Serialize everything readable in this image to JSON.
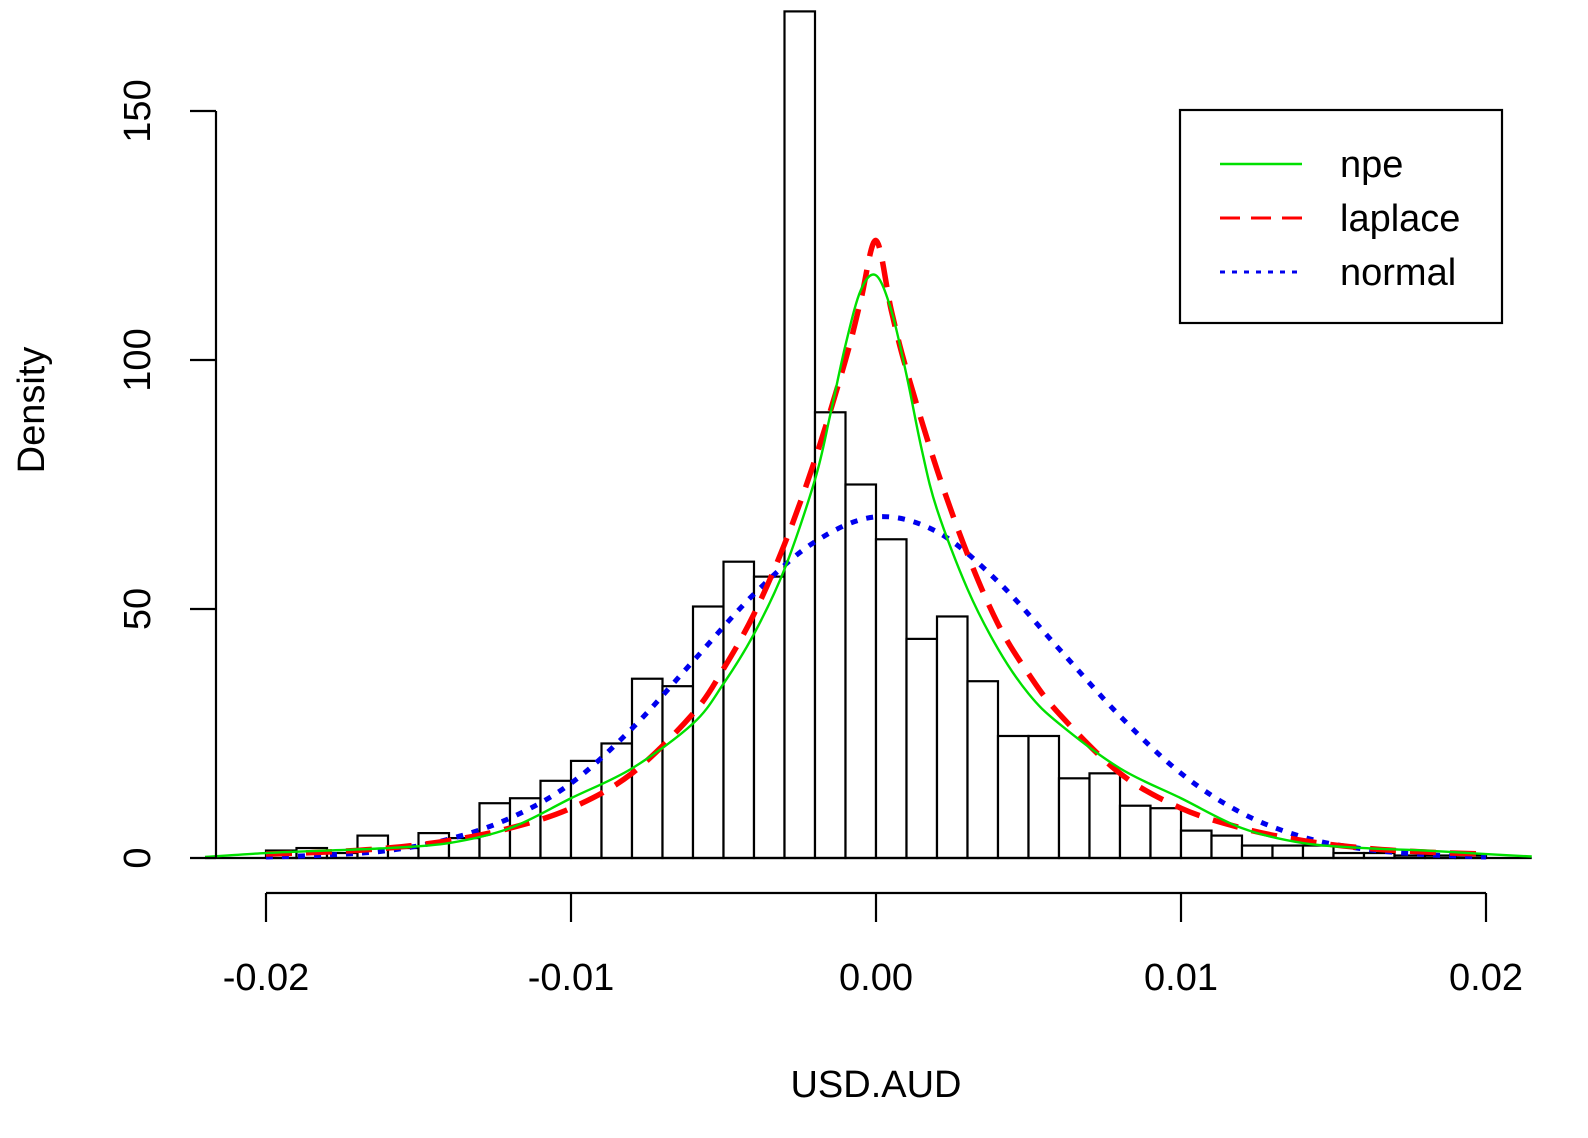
{
  "chart_data": {
    "type": "bar",
    "title": "",
    "xlabel": "USD.AUD",
    "ylabel": "Density",
    "xlim": [
      -0.022,
      0.0215
    ],
    "ylim": [
      0,
      150
    ],
    "x_ticks": [
      -0.02,
      -0.01,
      0.0,
      0.01,
      0.02
    ],
    "x_tick_labels": [
      "-0.02",
      "-0.01",
      "0.00",
      "0.01",
      "0.02"
    ],
    "y_ticks": [
      0,
      50,
      100,
      150
    ],
    "y_tick_labels": [
      "0",
      "50",
      "100",
      "150"
    ],
    "grid": false,
    "legend_position": "top-right",
    "histogram": {
      "bin_width": 0.001,
      "bin_starts": [
        -0.02,
        -0.019,
        -0.018,
        -0.017,
        -0.016,
        -0.015,
        -0.014,
        -0.013,
        -0.012,
        -0.011,
        -0.01,
        -0.009,
        -0.008,
        -0.007,
        -0.006,
        -0.005,
        -0.004,
        -0.003,
        -0.002,
        -0.001,
        0.0,
        0.001,
        0.002,
        0.003,
        0.004,
        0.005,
        0.006,
        0.007,
        0.008,
        0.009,
        0.01,
        0.011,
        0.012,
        0.013,
        0.014,
        0.015,
        0.016,
        0.017,
        0.018,
        0.019
      ],
      "density": [
        1.5,
        2,
        1,
        4.5,
        2,
        5,
        4,
        11,
        12,
        15.5,
        19.5,
        23,
        36,
        34.5,
        50.5,
        59.5,
        56.5,
        170,
        89.5,
        75,
        64,
        44,
        48.5,
        35.5,
        24.5,
        24.5,
        16,
        17,
        10.5,
        10,
        5.5,
        4.5,
        2.5,
        2.5,
        2.5,
        1,
        1,
        0.5,
        0.5,
        0.5
      ]
    },
    "series": [
      {
        "name": "npe",
        "color": "#00e000",
        "dash": "solid",
        "x": [
          -0.022,
          -0.02,
          -0.018,
          -0.016,
          -0.014,
          -0.012,
          -0.01,
          -0.008,
          -0.006,
          -0.005,
          -0.004,
          -0.003,
          -0.002,
          -0.0015,
          -0.001,
          -0.0005,
          0.0,
          0.0005,
          0.001,
          0.0015,
          0.002,
          0.003,
          0.004,
          0.005,
          0.006,
          0.008,
          0.01,
          0.012,
          0.014,
          0.016,
          0.018,
          0.02,
          0.0215
        ],
        "y": [
          0.2,
          1,
          1.5,
          2,
          3,
          6,
          12,
          18,
          27,
          35,
          45,
          58,
          76,
          89,
          103,
          114,
          117,
          110,
          97,
          82,
          70,
          54,
          42,
          33,
          27,
          18,
          12,
          6,
          3,
          2,
          1.5,
          0.8,
          0.3
        ]
      },
      {
        "name": "laplace",
        "color": "#ff0000",
        "dash": "dashed",
        "x": [
          -0.02,
          -0.018,
          -0.016,
          -0.014,
          -0.012,
          -0.01,
          -0.008,
          -0.006,
          -0.005,
          -0.004,
          -0.003,
          -0.002,
          -0.001,
          -0.0005,
          0.0,
          0.0005,
          0.001,
          0.002,
          0.003,
          0.004,
          0.005,
          0.006,
          0.008,
          0.01,
          0.012,
          0.014,
          0.016,
          0.018,
          0.02
        ],
        "y": [
          0.8,
          1.2,
          2,
          3.5,
          6,
          10,
          17,
          29,
          38,
          49,
          63,
          80,
          100,
          112,
          124,
          110,
          98,
          78,
          61,
          47,
          37,
          29,
          17,
          10,
          6,
          3.5,
          2,
          1.2,
          0.8
        ]
      },
      {
        "name": "normal",
        "color": "#0000ee",
        "dash": "dotted",
        "x": [
          -0.02,
          -0.018,
          -0.016,
          -0.014,
          -0.012,
          -0.01,
          -0.008,
          -0.006,
          -0.004,
          -0.002,
          0.0,
          0.002,
          0.004,
          0.006,
          0.008,
          0.01,
          0.012,
          0.014,
          0.016,
          0.018,
          0.02
        ],
        "y": [
          0.2,
          0.6,
          1.5,
          3.8,
          8,
          15,
          26,
          39.5,
          53,
          63.5,
          68.5,
          65.5,
          55.5,
          42,
          28.5,
          17,
          9,
          4.2,
          1.8,
          0.7,
          0.2
        ]
      }
    ]
  }
}
